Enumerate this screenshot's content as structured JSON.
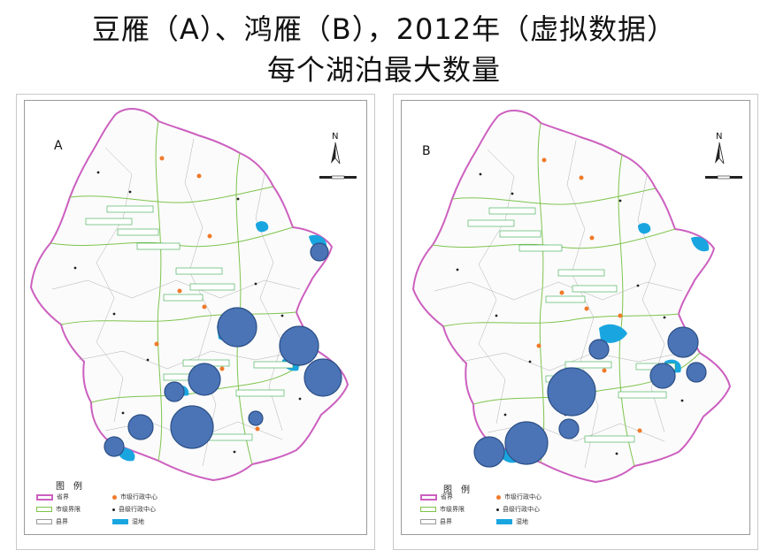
{
  "title": {
    "line1": "豆雁（A）、鸿雁（B），2012年（虚拟数据）",
    "line2": "每个湖泊最大数量"
  },
  "colors": {
    "province_border": "#cc5fbf",
    "city_border": "#7ec44d",
    "county_border": "#9a9a9a",
    "wetland": "#19a6e0",
    "bubble": "#4a74b6",
    "city_center": "#f07a2a",
    "county_center": "#222222",
    "label_box": "#35a84a"
  },
  "north_arrow": {
    "letter": "N"
  },
  "panels": [
    {
      "id": "A",
      "label": "A",
      "bubble_count": 11,
      "legend": {
        "title": "图例",
        "items": [
          "省界",
          "市级界限",
          "县界",
          "市级行政中心",
          "县级行政中心",
          "湿地"
        ]
      }
    },
    {
      "id": "B",
      "label": "B",
      "bubble_count": 10,
      "legend": {
        "title": "图例",
        "items": [
          "省界",
          "市级界限",
          "县界",
          "市级行政中心",
          "县级行政中心",
          "湿地"
        ]
      }
    }
  ]
}
